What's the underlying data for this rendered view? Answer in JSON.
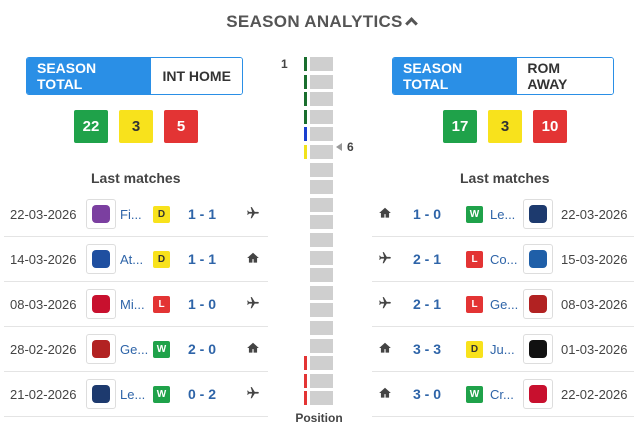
{
  "header": {
    "title": "SEASON ANALYTICS"
  },
  "left": {
    "toggle": {
      "active": "SEASON TOTAL",
      "inactive": "INT HOME"
    },
    "stats": {
      "wins": "22",
      "draws": "3",
      "losses": "5"
    },
    "last_title": "Last matches",
    "matches": [
      {
        "date": "22-03-2026",
        "team": "Fi...",
        "result": "D",
        "score": "1 - 1",
        "venue": "away",
        "logo_color": "#7b3fa0"
      },
      {
        "date": "14-03-2026",
        "team": "At...",
        "result": "D",
        "score": "1 - 1",
        "venue": "home",
        "logo_color": "#1f4fa0"
      },
      {
        "date": "08-03-2026",
        "team": "Mi...",
        "result": "L",
        "score": "1 - 0",
        "venue": "away",
        "logo_color": "#c8102e"
      },
      {
        "date": "28-02-2026",
        "team": "Ge...",
        "result": "W",
        "score": "2 - 0",
        "venue": "home",
        "logo_color": "#b22222"
      },
      {
        "date": "21-02-2026",
        "team": "Le...",
        "result": "W",
        "score": "0 - 2",
        "venue": "away",
        "logo_color": "#1d3a6e"
      }
    ]
  },
  "right": {
    "toggle": {
      "active": "SEASON TOTAL",
      "inactive": "ROM AWAY"
    },
    "stats": {
      "wins": "17",
      "draws": "3",
      "losses": "10"
    },
    "last_title": "Last matches",
    "matches": [
      {
        "date": "22-03-2026",
        "team": "Le...",
        "result": "W",
        "score": "1 - 0",
        "venue": "home",
        "logo_color": "#1d3a6e"
      },
      {
        "date": "15-03-2026",
        "team": "Co...",
        "result": "L",
        "score": "2 - 1",
        "venue": "away",
        "logo_color": "#1f5fa8"
      },
      {
        "date": "08-03-2026",
        "team": "Ge...",
        "result": "L",
        "score": "2 - 1",
        "venue": "away",
        "logo_color": "#b22222"
      },
      {
        "date": "01-03-2026",
        "team": "Ju...",
        "result": "D",
        "score": "3 - 3",
        "venue": "home",
        "logo_color": "#111111"
      },
      {
        "date": "22-02-2026",
        "team": "Cr...",
        "result": "W",
        "score": "3 - 0",
        "venue": "home",
        "logo_color": "#c8102e"
      }
    ]
  },
  "position": {
    "top_label": "1",
    "current_label": "6",
    "caption": "Position",
    "total_positions": 20,
    "current": 6,
    "zone_colors": {
      "champions": "#1a6e2e",
      "europa": "#1a3fcf",
      "conference": "#f1e21c",
      "relegation": "#e33434"
    }
  },
  "colors": {
    "accent": "#2a8fe6",
    "win": "#1fa24a",
    "draw": "#f8e21c",
    "loss": "#e33434"
  }
}
